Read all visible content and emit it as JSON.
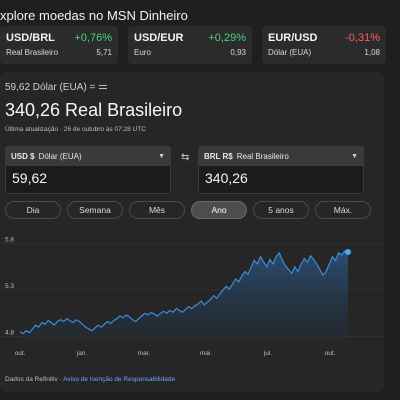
{
  "page": {
    "title": "xplore moedas no MSN Dinheiro"
  },
  "tickers": [
    {
      "pair": "USD/BRL",
      "change": "+0,76%",
      "trend": "up",
      "name": "Real Brasileiro",
      "value": "5,71"
    },
    {
      "pair": "USD/EUR",
      "change": "+0,29%",
      "trend": "up",
      "name": "Euro",
      "value": "0,93"
    },
    {
      "pair": "EUR/USD",
      "change": "-0,31%",
      "trend": "down",
      "name": "Dólar (EUA)",
      "value": "1,08"
    }
  ],
  "converter": {
    "rate_line": "59,62 Dólar (EUA) =",
    "result": "340,26 Real Brasileiro",
    "updated": "Última atualização · 26 de outubro às 07:28 UTC",
    "from": {
      "code": "USD $",
      "name": "Dólar (EUA)",
      "amount": "59,62"
    },
    "to": {
      "code": "BRL R$",
      "name": "Real Brasileiro",
      "amount": "340,26"
    },
    "ranges": [
      "Dia",
      "Semana",
      "Mês",
      "Ano",
      "5 anos",
      "Máx."
    ],
    "active_range": "Ano",
    "source_prefix": "Dados da Refinitiv · ",
    "source_link": "Aviso de Isenção de Responsabilidade"
  },
  "colors": {
    "up": "#4bd27a",
    "down": "#ff5b5b",
    "line": "#3d8bdb",
    "link": "#64a8ff"
  },
  "chart_data": {
    "type": "area",
    "xlabels": [
      "out.",
      "jan.",
      "mar.",
      "mai.",
      "jul.",
      "out."
    ],
    "yticks": [
      "5.8",
      "5.3",
      "4.8"
    ],
    "ylim": [
      4.75,
      5.85
    ],
    "grid": true,
    "legend": "none",
    "series": [
      {
        "values": [
          4.85,
          4.83,
          4.86,
          4.84,
          4.88,
          4.92,
          4.9,
          4.95,
          4.93,
          4.97,
          4.95,
          4.92,
          4.96,
          4.98,
          4.96,
          4.99,
          4.97,
          4.95,
          4.98,
          4.96,
          4.93,
          4.9,
          4.88,
          4.86,
          4.89,
          4.92,
          4.9,
          4.93,
          4.96,
          4.94,
          4.97,
          4.99,
          5.02,
          5.0,
          5.03,
          5.01,
          4.98,
          4.96,
          4.99,
          5.02,
          5.05,
          5.03,
          5.06,
          5.04,
          5.02,
          5.05,
          5.07,
          5.05,
          5.08,
          5.06,
          5.1,
          5.08,
          5.06,
          5.09,
          5.12,
          5.1,
          5.13,
          5.15,
          5.18,
          5.14,
          5.17,
          5.2,
          5.24,
          5.21,
          5.26,
          5.3,
          5.34,
          5.31,
          5.36,
          5.42,
          5.39,
          5.45,
          5.5,
          5.47,
          5.55,
          5.62,
          5.58,
          5.66,
          5.6,
          5.55,
          5.63,
          5.58,
          5.66,
          5.7,
          5.62,
          5.56,
          5.52,
          5.48,
          5.55,
          5.5,
          5.58,
          5.64,
          5.6,
          5.67,
          5.63,
          5.58,
          5.52,
          5.46,
          5.5,
          5.58,
          5.66,
          5.62,
          5.7,
          5.68,
          5.72,
          5.71
        ]
      }
    ]
  }
}
